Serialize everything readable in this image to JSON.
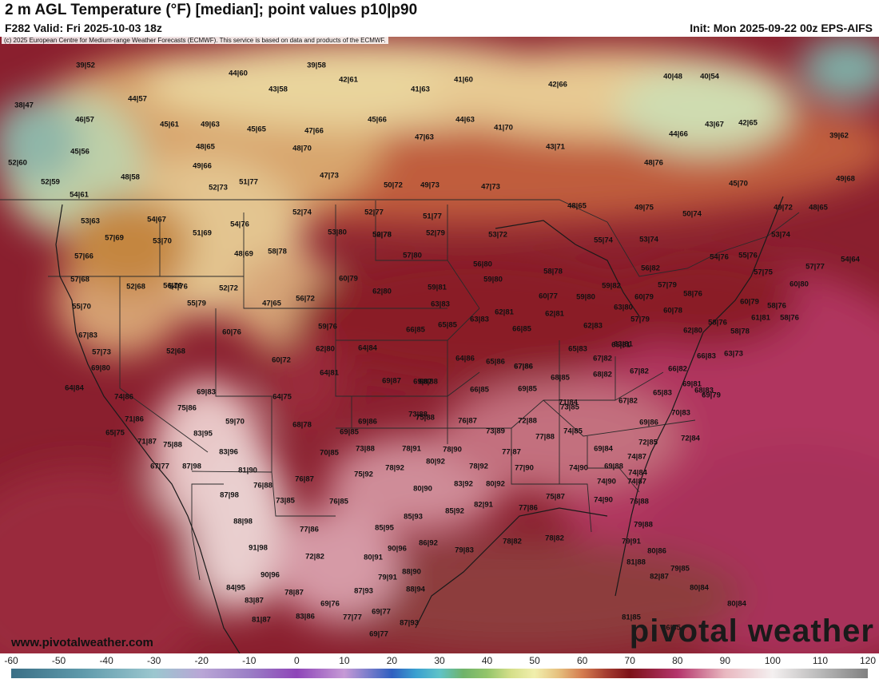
{
  "header": {
    "title": "2 m AGL Temperature (°F) [median]; point values p10|p90",
    "valid": "F282 Valid: Fri 2025-10-03 18z",
    "init": "Init: Mon 2025-09-22 00z EPS-AIFS"
  },
  "map": {
    "copyright": "(c) 2025 European Centre for Medium-range Weather Forecasts (ECMWF). This service is based on data and products of the ECMWF.",
    "site_url": "www.pivotalweather.com",
    "brand": "pivotal weather",
    "point_values": [
      "39|52",
      "44|60",
      "39|58",
      "42|61",
      "41|63",
      "41|60",
      "42|66",
      "40|48",
      "40|54",
      "38|47",
      "44|57",
      "43|58",
      "46|57",
      "45|61",
      "49|63",
      "45|65",
      "47|66",
      "45|66",
      "44|63",
      "41|70",
      "43|67",
      "42|65",
      "45|56",
      "48|65",
      "48|70",
      "47|63",
      "43|71",
      "44|66",
      "39|62",
      "52|60",
      "48|58",
      "49|66",
      "52|73",
      "51|77",
      "47|73",
      "50|72",
      "49|73",
      "47|73",
      "48|76",
      "45|70",
      "49|68",
      "52|59",
      "54|61",
      "52|74",
      "52|77",
      "51|77",
      "50|78",
      "48|65",
      "49|75",
      "50|74",
      "49|72",
      "48|65",
      "53|63",
      "54|67",
      "54|76",
      "53|80",
      "52|78",
      "52|79",
      "53|72",
      "55|74",
      "53|74",
      "53|74",
      "57|69",
      "53|70",
      "51|69",
      "48|69",
      "58|78",
      "57|80",
      "56|80",
      "54|76",
      "55|76",
      "57|77",
      "54|64",
      "57|66",
      "54|76",
      "60|79",
      "58|78",
      "56|82",
      "59|80",
      "57|75",
      "60|80",
      "57|68",
      "52|68",
      "56|76",
      "52|72",
      "47|65",
      "56|72",
      "62|80",
      "59|81",
      "59|82",
      "60|79",
      "57|79",
      "58|76",
      "55|70",
      "55|79",
      "63|83",
      "60|77",
      "59|80",
      "63|80",
      "60|78",
      "58|76",
      "60|79",
      "58|76",
      "67|83",
      "60|76",
      "59|76",
      "66|85",
      "65|85",
      "63|83",
      "62|81",
      "62|81",
      "57|79",
      "61|81",
      "58|76",
      "58|78",
      "57|73",
      "52|68",
      "62|80",
      "64|84",
      "66|85",
      "62|83",
      "63|81",
      "62|80",
      "69|80",
      "60|72",
      "69|87",
      "64|86",
      "65|86",
      "67|86",
      "65|83",
      "65|81",
      "67|82",
      "66|83",
      "63|73",
      "64|84",
      "64|81",
      "69|87",
      "68|88",
      "67|86",
      "68|85",
      "68|82",
      "67|82",
      "66|82",
      "69|81",
      "74|86",
      "69|83",
      "66|85",
      "69|85",
      "73|85",
      "67|82",
      "65|83",
      "68|83",
      "75|86",
      "64|75",
      "73|88",
      "71|84",
      "70|83",
      "69|79",
      "71|86",
      "59|70",
      "68|78",
      "69|86",
      "75|88",
      "76|87",
      "72|88",
      "69|86",
      "65|75",
      "83|95",
      "69|85",
      "73|89",
      "77|88",
      "74|85",
      "72|85",
      "72|84",
      "71|87",
      "75|88",
      "83|96",
      "70|85",
      "73|88",
      "78|91",
      "78|90",
      "77|87",
      "74|87",
      "69|84",
      "74|87",
      "67|77",
      "87|98",
      "81|90",
      "78|92",
      "80|92",
      "78|92",
      "77|90",
      "74|90",
      "69|88",
      "74|84",
      "76|88",
      "76|87",
      "75|92",
      "80|90",
      "83|92",
      "80|92",
      "74|90",
      "87|98",
      "73|85",
      "76|85",
      "82|91",
      "75|87",
      "74|90",
      "76|88",
      "77|86",
      "88|98",
      "77|86",
      "85|95",
      "85|93",
      "85|92",
      "79|88",
      "78|82",
      "78|82",
      "91|98",
      "72|82",
      "80|91",
      "90|96",
      "86|92",
      "79|83",
      "79|91",
      "80|86",
      "90|96",
      "78|87",
      "79|91",
      "88|90",
      "81|88",
      "79|85",
      "82|87",
      "84|95",
      "83|87",
      "87|93",
      "88|94",
      "80|84",
      "69|76",
      "77|77",
      "69|77",
      "87|93",
      "80|84",
      "81|87",
      "83|86",
      "69|77",
      "81|85",
      "86|85"
    ]
  },
  "colorbar": {
    "labels": [
      "-60",
      "-50",
      "-40",
      "-30",
      "-20",
      "-10",
      "0",
      "10",
      "20",
      "30",
      "40",
      "50",
      "60",
      "70",
      "80",
      "90",
      "100",
      "110",
      "120"
    ],
    "stops": [
      {
        "value": -60,
        "color": "#3a6f86"
      },
      {
        "value": -45,
        "color": "#5f9aab"
      },
      {
        "value": -30,
        "color": "#9bc7cf"
      },
      {
        "value": -20,
        "color": "#b9a6d6"
      },
      {
        "value": -10,
        "color": "#9b7fc6"
      },
      {
        "value": 0,
        "color": "#8e45b8"
      },
      {
        "value": 10,
        "color": "#c69ad6"
      },
      {
        "value": 20,
        "color": "#2f5fc0"
      },
      {
        "value": 25,
        "color": "#3aa0d0"
      },
      {
        "value": 30,
        "color": "#5fc3c8"
      },
      {
        "value": 35,
        "color": "#6fb36a"
      },
      {
        "value": 40,
        "color": "#93c56a"
      },
      {
        "value": 45,
        "color": "#d5df8a"
      },
      {
        "value": 50,
        "color": "#f1efad"
      },
      {
        "value": 55,
        "color": "#e6c07e"
      },
      {
        "value": 60,
        "color": "#d47c4f"
      },
      {
        "value": 65,
        "color": "#a53d30"
      },
      {
        "value": 70,
        "color": "#7d1218"
      },
      {
        "value": 80,
        "color": "#b4356c"
      },
      {
        "value": 90,
        "color": "#e9b8c0"
      },
      {
        "value": 100,
        "color": "#f4f0f0"
      },
      {
        "value": 110,
        "color": "#b9b9b9"
      },
      {
        "value": 120,
        "color": "#808080"
      }
    ]
  }
}
